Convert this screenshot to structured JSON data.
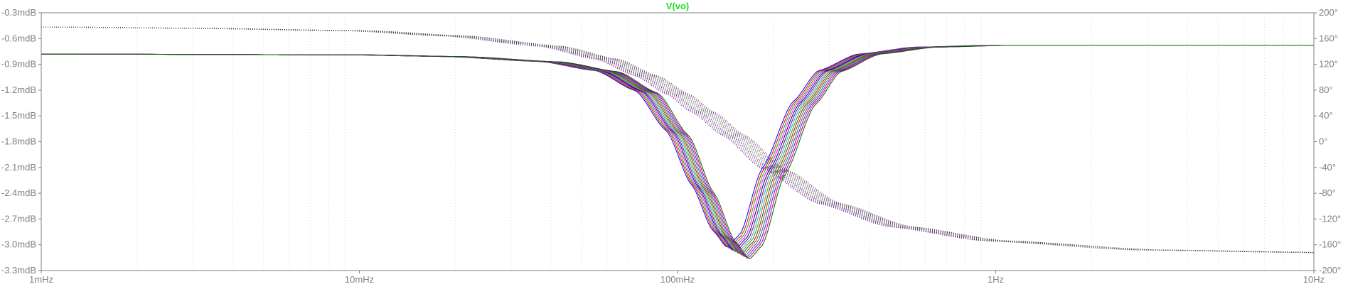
{
  "chart_data": {
    "type": "line",
    "title": "V(vo)",
    "title_color": "#19e619",
    "x_scale": "log",
    "xlim": [
      0.001,
      10
    ],
    "x_ticks": [
      {
        "value": 0.001,
        "label": "1mHz"
      },
      {
        "value": 0.01,
        "label": "10mHz"
      },
      {
        "value": 0.1,
        "label": "100mHz"
      },
      {
        "value": 1,
        "label": "1Hz"
      },
      {
        "value": 10,
        "label": "10Hz"
      }
    ],
    "y_left": {
      "unit": "dB",
      "ylim": [
        -3.3,
        -0.3
      ],
      "ticks": [
        {
          "value": -0.3,
          "label": "-0.3mdB"
        },
        {
          "value": -0.6,
          "label": "-0.6mdB"
        },
        {
          "value": -0.9,
          "label": "-0.9mdB"
        },
        {
          "value": -1.2,
          "label": "-1.2mdB"
        },
        {
          "value": -1.5,
          "label": "-1.5mdB"
        },
        {
          "value": -1.8,
          "label": "-1.8mdB"
        },
        {
          "value": -2.1,
          "label": "-2.1mdB"
        },
        {
          "value": -2.4,
          "label": "-2.4mdB"
        },
        {
          "value": -2.7,
          "label": "-2.7mdB"
        },
        {
          "value": -3.0,
          "label": "-3.0mdB"
        },
        {
          "value": -3.3,
          "label": "-3.3mdB"
        }
      ]
    },
    "y_right": {
      "unit": "deg",
      "ylim": [
        -200,
        200
      ],
      "ticks": [
        {
          "value": 200,
          "label": "200°"
        },
        {
          "value": 160,
          "label": "160°"
        },
        {
          "value": 120,
          "label": "120°"
        },
        {
          "value": 80,
          "label": "80°"
        },
        {
          "value": 40,
          "label": "40°"
        },
        {
          "value": 0,
          "label": "0°"
        },
        {
          "value": -40,
          "label": "-40°"
        },
        {
          "value": -80,
          "label": "-80°"
        },
        {
          "value": -120,
          "label": "-120°"
        },
        {
          "value": -160,
          "label": "-160°"
        },
        {
          "value": -200,
          "label": "-200°"
        }
      ]
    },
    "grid": "vertical-minor-dotted",
    "magnitude_nominal": {
      "x": [
        0.001,
        0.01,
        0.02,
        0.04,
        0.06,
        0.08,
        0.1,
        0.12,
        0.14,
        0.155,
        0.17,
        0.2,
        0.25,
        0.3,
        0.4,
        0.6,
        1,
        10
      ],
      "y": [
        -0.78,
        -0.79,
        -0.81,
        -0.87,
        -0.98,
        -1.22,
        -1.7,
        -2.35,
        -2.9,
        -3.1,
        -2.95,
        -2.15,
        -1.35,
        -0.98,
        -0.78,
        -0.7,
        -0.68,
        -0.68
      ]
    },
    "phase_nominal": {
      "x": [
        0.001,
        0.003,
        0.01,
        0.02,
        0.04,
        0.06,
        0.08,
        0.1,
        0.12,
        0.15,
        0.2,
        0.3,
        0.5,
        1,
        3,
        10
      ],
      "y": [
        178,
        176,
        172,
        164,
        148,
        128,
        102,
        74,
        46,
        10,
        -42,
        -96,
        -132,
        -154,
        -168,
        -172
      ]
    },
    "monte_carlo_runs": 14,
    "series_colors": [
      "#0000ff",
      "#ff0000",
      "#00b000",
      "#ff00ff",
      "#000080",
      "#800080",
      "#00c0c0",
      "#808000",
      "#404040",
      "#c04000",
      "#008080",
      "#8000ff",
      "#c00060",
      "#006000"
    ]
  }
}
